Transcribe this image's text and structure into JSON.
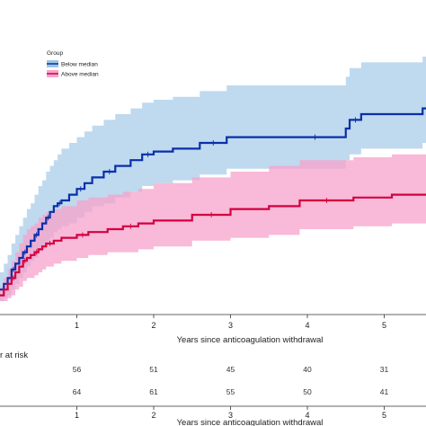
{
  "chart_data": {
    "type": "line",
    "subtype": "kaplan-meier cumulative incidence with confidence bands",
    "xlabel": "Years since anticoagulation withdrawal",
    "x_ticks": [
      1,
      2,
      3,
      4,
      5
    ],
    "xlim": [
      0,
      6.2
    ],
    "ylim": [
      0,
      1
    ],
    "legend": {
      "title": "Group",
      "placement": "top-left"
    },
    "series": [
      {
        "name": "Below median",
        "color": "#0a2fa8",
        "band_color": "#9cc4e6",
        "x": [
          0,
          0.05,
          0.1,
          0.15,
          0.2,
          0.25,
          0.3,
          0.35,
          0.4,
          0.45,
          0.5,
          0.55,
          0.6,
          0.65,
          0.7,
          0.75,
          0.8,
          0.9,
          1.0,
          1.1,
          1.2,
          1.35,
          1.5,
          1.7,
          1.85,
          2.0,
          2.25,
          2.6,
          2.95,
          3.4,
          3.8,
          4.4,
          4.5,
          4.55,
          4.7,
          5.1,
          5.5,
          5.95
        ],
        "y": [
          0.04,
          0.06,
          0.08,
          0.11,
          0.13,
          0.15,
          0.17,
          0.19,
          0.21,
          0.23,
          0.25,
          0.27,
          0.29,
          0.31,
          0.33,
          0.34,
          0.35,
          0.37,
          0.39,
          0.41,
          0.43,
          0.45,
          0.47,
          0.49,
          0.51,
          0.52,
          0.53,
          0.55,
          0.57,
          0.57,
          0.57,
          0.57,
          0.6,
          0.63,
          0.65,
          0.65,
          0.67,
          0.69
        ],
        "ci_lower": [
          0.0,
          0.01,
          0.02,
          0.04,
          0.06,
          0.08,
          0.1,
          0.12,
          0.14,
          0.15,
          0.17,
          0.18,
          0.2,
          0.22,
          0.24,
          0.25,
          0.26,
          0.27,
          0.29,
          0.31,
          0.33,
          0.34,
          0.36,
          0.38,
          0.4,
          0.41,
          0.42,
          0.44,
          0.46,
          0.46,
          0.46,
          0.46,
          0.49,
          0.51,
          0.53,
          0.53,
          0.55,
          0.57
        ],
        "ci_upper": [
          0.1,
          0.13,
          0.16,
          0.2,
          0.23,
          0.26,
          0.29,
          0.32,
          0.34,
          0.37,
          0.4,
          0.42,
          0.45,
          0.47,
          0.49,
          0.51,
          0.53,
          0.55,
          0.57,
          0.59,
          0.61,
          0.63,
          0.65,
          0.67,
          0.69,
          0.7,
          0.71,
          0.73,
          0.75,
          0.75,
          0.75,
          0.75,
          0.78,
          0.81,
          0.83,
          0.83,
          0.85,
          0.87
        ]
      },
      {
        "name": "Above median",
        "color": "#d3003f",
        "band_color": "#f7a1cb",
        "x": [
          0,
          0.05,
          0.1,
          0.15,
          0.2,
          0.25,
          0.3,
          0.35,
          0.4,
          0.45,
          0.5,
          0.55,
          0.6,
          0.7,
          0.8,
          1.0,
          1.15,
          1.4,
          1.6,
          1.8,
          2.0,
          2.5,
          3.0,
          3.5,
          3.9,
          4.6,
          5.1,
          5.95
        ],
        "y": [
          0.02,
          0.04,
          0.06,
          0.08,
          0.1,
          0.12,
          0.14,
          0.15,
          0.16,
          0.17,
          0.18,
          0.19,
          0.2,
          0.21,
          0.22,
          0.23,
          0.24,
          0.25,
          0.26,
          0.27,
          0.28,
          0.3,
          0.32,
          0.33,
          0.35,
          0.36,
          0.37,
          0.39
        ],
        "ci_lower": [
          0.0,
          0.0,
          0.01,
          0.02,
          0.04,
          0.05,
          0.07,
          0.08,
          0.08,
          0.09,
          0.1,
          0.11,
          0.12,
          0.13,
          0.14,
          0.15,
          0.16,
          0.17,
          0.17,
          0.18,
          0.19,
          0.21,
          0.22,
          0.23,
          0.25,
          0.26,
          0.27,
          0.29
        ],
        "ci_upper": [
          0.05,
          0.08,
          0.11,
          0.14,
          0.17,
          0.2,
          0.23,
          0.25,
          0.26,
          0.27,
          0.29,
          0.3,
          0.31,
          0.32,
          0.33,
          0.35,
          0.36,
          0.37,
          0.38,
          0.39,
          0.41,
          0.43,
          0.45,
          0.47,
          0.49,
          0.5,
          0.51,
          0.52
        ]
      }
    ],
    "risk_table": {
      "title": "r at risk",
      "xlabel": "Years since anticoagulation withdrawal",
      "x_ticks": [
        1,
        2,
        3,
        4,
        5
      ],
      "rows": [
        {
          "group": "Below median",
          "values": [
            56,
            51,
            45,
            40,
            31
          ]
        },
        {
          "group": "Above median",
          "values": [
            64,
            61,
            55,
            50,
            41
          ]
        }
      ]
    }
  }
}
